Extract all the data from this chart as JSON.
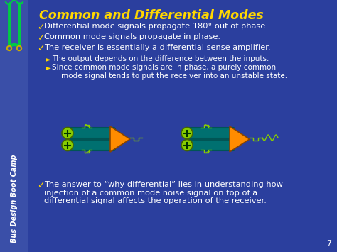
{
  "title": "Common and Differential Modes",
  "title_color": "#FFD700",
  "bg_color": "#2B3F9E",
  "sidebar_bg": "#3A4FA8",
  "sidebar_text": "Bus Design Boot Camp",
  "sidebar_text_color": "#FFFFFF",
  "bullet_color": "#FFFFFF",
  "bullet_check": "✓",
  "bullet_arrow": "►",
  "yellow": "#FFD700",
  "white": "#FFFFFF",
  "bullets": [
    "Differential mode signals propagate 180° out of phase.",
    "Common mode signals propagate in phase.",
    "The receiver is essentially a differential sense amplifier."
  ],
  "sub_bullets": [
    "The output depends on the difference between the inputs.",
    "Since common mode signals are in phase, a purely common\n    mode signal tends to put the receiver into an unstable state."
  ],
  "bottom_bullet": "The answer to “why differential” lies in understanding how\ninjection of a common mode noise signal on top of a\ndifferential signal affects the operation of the receiver.",
  "teal_dark": "#005555",
  "teal_mid": "#007070",
  "orange_color": "#FF8C00",
  "green_circle": "#88CC00",
  "signal_color": "#88CC00",
  "page_num": "7",
  "figsize": [
    4.74,
    3.55
  ],
  "dpi": 100
}
